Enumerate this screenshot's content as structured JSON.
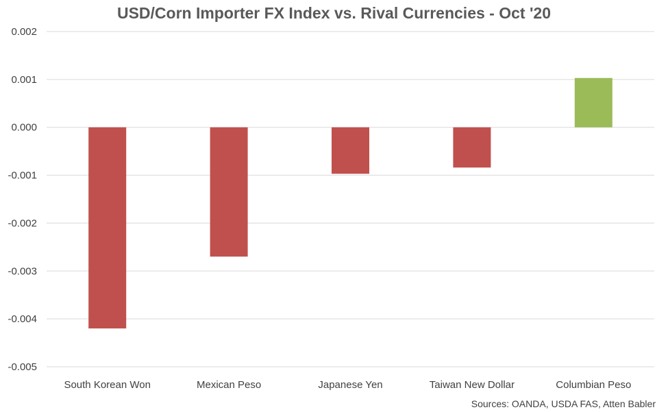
{
  "chart_data": {
    "type": "bar",
    "title": "USD/Corn Importer FX Index vs. Rival Currencies - Oct '20",
    "categories": [
      "South Korean Won",
      "Mexican Peso",
      "Japanese Yen",
      "Taiwan New Dollar",
      "Columbian Peso"
    ],
    "values": [
      -0.0042,
      -0.0027,
      -0.00097,
      -0.00084,
      0.00103
    ],
    "bar_colors": [
      "#c0504d",
      "#c0504d",
      "#c0504d",
      "#c0504d",
      "#9bbb59"
    ],
    "ylim": [
      -0.005,
      0.002
    ],
    "yticks": [
      0.002,
      0.001,
      0.0,
      -0.001,
      -0.002,
      -0.003,
      -0.004,
      -0.005
    ],
    "ytick_labels": [
      "0.002",
      "0.001",
      "0.000",
      "-0.001",
      "-0.002",
      "-0.003",
      "-0.004",
      "-0.005"
    ],
    "xlabel": "",
    "ylabel": "",
    "grid": true,
    "source": "Sources: OANDA, USDA FAS, Atten Babler"
  }
}
